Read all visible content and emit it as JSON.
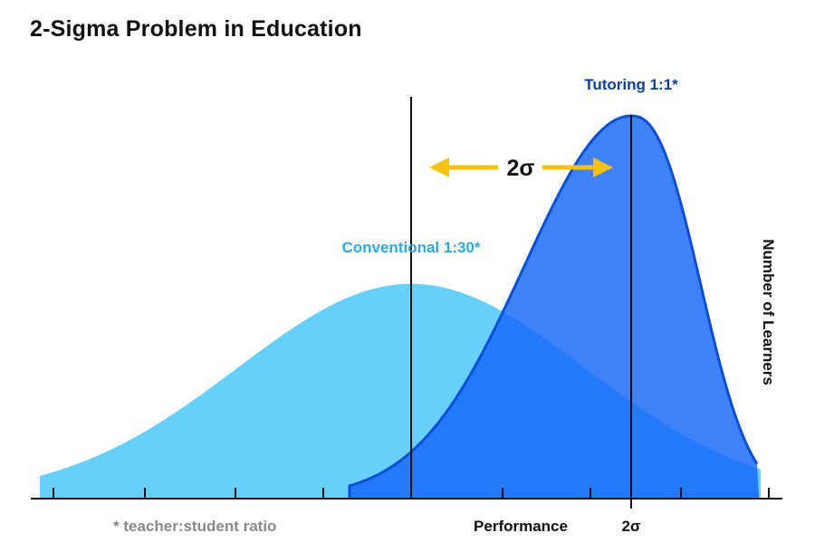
{
  "title": "2-Sigma Problem in Education",
  "colors": {
    "conventional": "#66d0fb",
    "tutoring": "#1565f5",
    "tutoring_edge": "#0a4fd6",
    "arrow": "#f5c20f",
    "axis": "#111111",
    "footnote": "#8a8a8a"
  },
  "chart_data": {
    "type": "area",
    "xlabel": "Performance",
    "ylabel": "Number of Learners",
    "x_tick_labels": [
      "2σ"
    ],
    "footnote": "* teacher:student ratio",
    "annotation": {
      "text": "2σ",
      "direction": "double-arrow",
      "from": "Conventional mean",
      "to": "Tutoring mean"
    },
    "series": [
      {
        "name": "Conventional 1:30*",
        "mean": 0,
        "sd": 1.0,
        "relative_peak": 0.56
      },
      {
        "name": "Tutoring 1:1*",
        "mean": 2,
        "sd": 0.55,
        "relative_peak": 1.0
      }
    ],
    "grid": false,
    "legend": "inline labels"
  }
}
